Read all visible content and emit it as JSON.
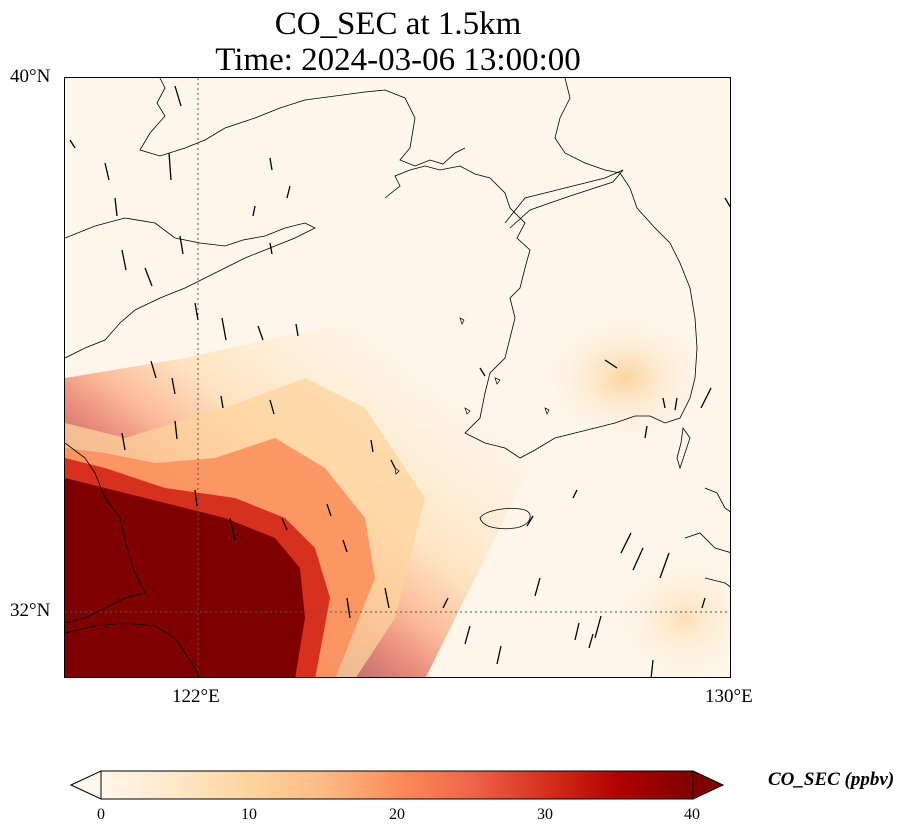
{
  "title": {
    "line1": "CO_SEC at 1.5km",
    "line2": "Time: 2024-03-06 13:00:00"
  },
  "map": {
    "lat_range": [
      31.2,
      40
    ],
    "lon_range": [
      120.4,
      130
    ],
    "gridlines": {
      "lat": [
        {
          "value": 32,
          "label": "32°N"
        },
        {
          "value": 40,
          "label": "40°N"
        }
      ],
      "lon": [
        {
          "value": 122,
          "label": "122°E"
        },
        {
          "value": 130,
          "label": "130°E"
        }
      ]
    },
    "field": "CO_SEC",
    "coastlines": true,
    "wind_vectors": true
  },
  "colorbar": {
    "label": "CO_SEC (ppbv)",
    "ticks": [
      "0",
      "10",
      "20",
      "30",
      "40"
    ],
    "range": [
      0,
      40
    ],
    "extend": "both",
    "colormap": "OrRd",
    "colors": [
      "#fff7ec",
      "#fee8c8",
      "#fdd49e",
      "#fdbb84",
      "#fc8d59",
      "#ef6548",
      "#d7301f",
      "#b30000",
      "#7f0000"
    ]
  }
}
